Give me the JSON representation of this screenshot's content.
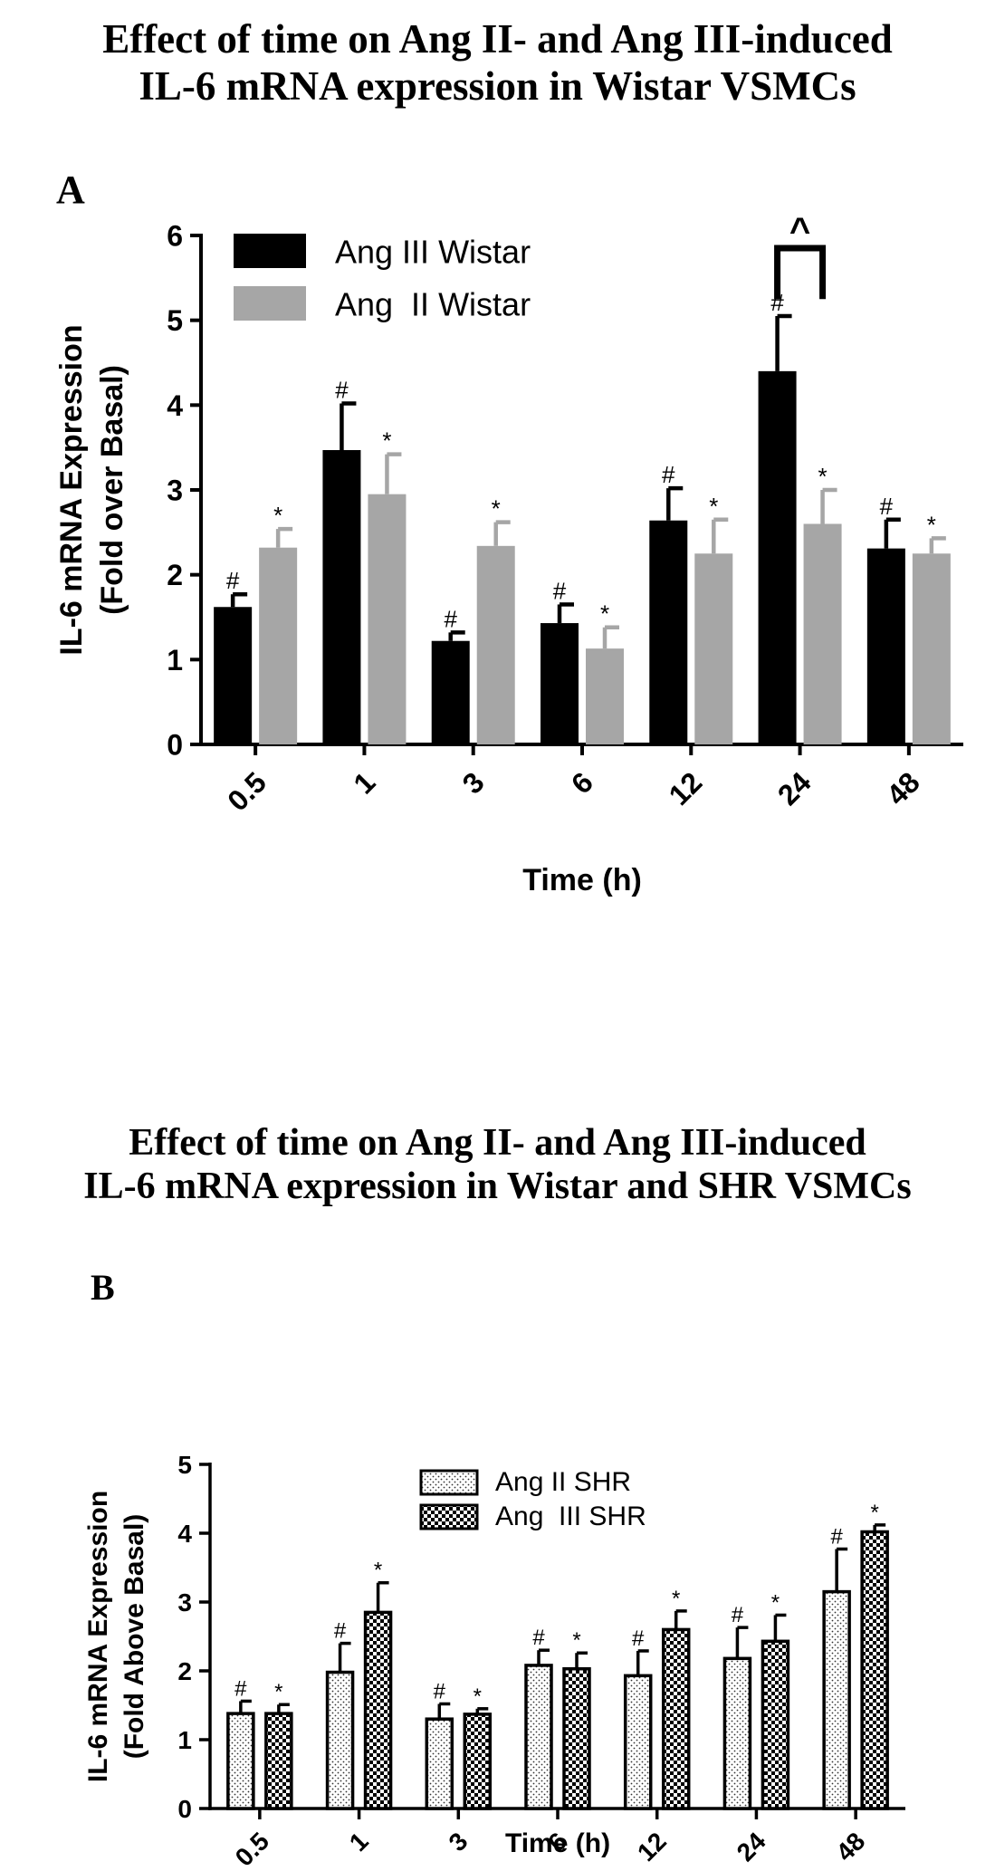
{
  "colors": {
    "ang3_wistar": "#000000",
    "ang2_wistar": "#a6a6a6",
    "shr_bar_fill": "#ffffff",
    "ink": "#000000"
  },
  "panel_a": {
    "title_line1": "Effect of time on Ang II- and Ang III-induced",
    "title_line2": "IL-6 mRNA expression in Wistar VSMCs",
    "letter": "A"
  },
  "panel_b": {
    "title_line1": "Effect of time on Ang II- and Ang III-induced",
    "title_line2": "IL-6 mRNA expression in Wistar and SHR VSMCs",
    "letter": "B"
  },
  "chart_data": [
    {
      "id": "A",
      "type": "bar",
      "xlabel": "Time (h)",
      "ylabel_line1": "IL-6 mRNA Expression",
      "ylabel_line2": "(Fold over Basal)",
      "categories": [
        "0.5",
        "1",
        "3",
        "6",
        "12",
        "24",
        "48"
      ],
      "ylim": [
        0,
        6
      ],
      "yticks": [
        "0",
        "1",
        "2",
        "3",
        "4",
        "5",
        "6"
      ],
      "legend_position": "top-left",
      "series": [
        {
          "name": "Ang III Wistar",
          "color": "#000000",
          "pattern": "solid",
          "values": [
            1.62,
            3.47,
            1.22,
            1.43,
            2.64,
            4.4,
            2.31
          ],
          "errors": [
            0.15,
            0.55,
            0.1,
            0.22,
            0.38,
            0.65,
            0.34
          ],
          "marker": "#"
        },
        {
          "name": "Ang  II Wistar",
          "color": "#a6a6a6",
          "pattern": "solid",
          "values": [
            2.32,
            2.95,
            2.34,
            1.13,
            2.25,
            2.6,
            2.25
          ],
          "errors": [
            0.22,
            0.47,
            0.28,
            0.25,
            0.4,
            0.4,
            0.18
          ],
          "marker": "*"
        }
      ],
      "annotation": {
        "symbol": "^",
        "category": "24"
      }
    },
    {
      "id": "B",
      "type": "bar",
      "xlabel": "Time (h)",
      "ylabel_line1": "IL-6 mRNA Expression",
      "ylabel_line2": "(Fold Above Basal)",
      "categories": [
        "0.5",
        "1",
        "3",
        "6",
        "12",
        "24",
        "48"
      ],
      "ylim": [
        0,
        5
      ],
      "yticks": [
        "0",
        "1",
        "2",
        "3",
        "4",
        "5"
      ],
      "legend_position": "top-center",
      "series": [
        {
          "name": "Ang II SHR",
          "color": "#ffffff",
          "pattern": "dots",
          "values": [
            1.38,
            1.98,
            1.3,
            2.08,
            1.93,
            2.18,
            3.15
          ],
          "errors": [
            0.18,
            0.42,
            0.22,
            0.22,
            0.36,
            0.45,
            0.62
          ],
          "marker": "#"
        },
        {
          "name": "Ang  III SHR",
          "color": "#ffffff",
          "pattern": "checker",
          "values": [
            1.38,
            2.85,
            1.37,
            2.03,
            2.6,
            2.43,
            4.02
          ],
          "errors": [
            0.13,
            0.43,
            0.08,
            0.23,
            0.27,
            0.38,
            0.1
          ],
          "marker": "*"
        }
      ]
    }
  ]
}
